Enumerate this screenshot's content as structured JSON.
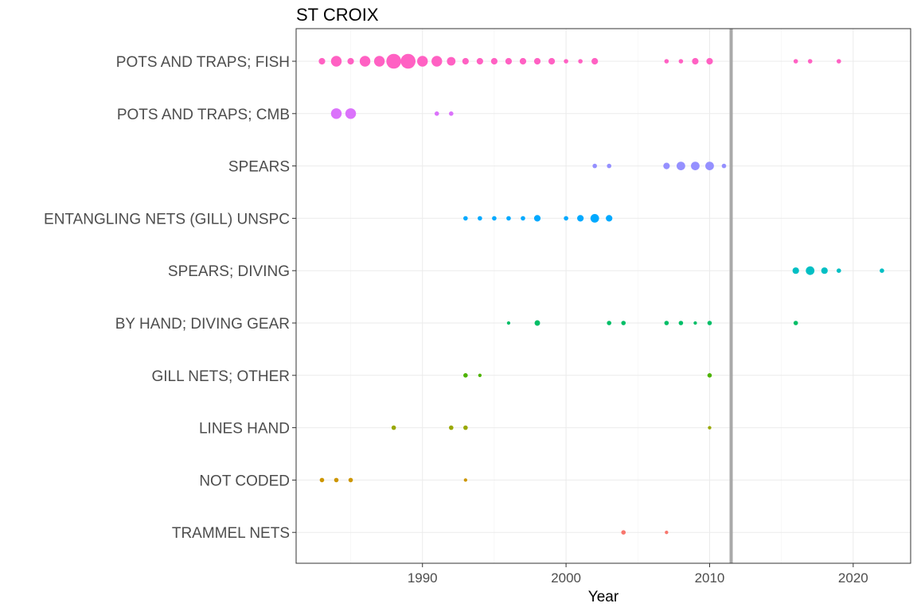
{
  "chart_data": {
    "type": "scatter",
    "title": "ST CROIX",
    "xlabel": "Year",
    "ylabel": "",
    "xlim": [
      1981.2,
      2024.0
    ],
    "xticks": [
      1990,
      2000,
      2010,
      2020
    ],
    "grid": true,
    "reference_line": {
      "x": 2011.5,
      "color": "#A9A9A9"
    },
    "categories": [
      "POTS AND TRAPS; FISH",
      "POTS AND TRAPS; CMB",
      "SPEARS",
      "ENTANGLING NETS (GILL) UNSPC",
      "SPEARS; DIVING",
      "BY HAND; DIVING GEAR",
      "GILL NETS; OTHER",
      "LINES HAND",
      "NOT CODED",
      "TRAMMEL NETS"
    ],
    "series": [
      {
        "category": "POTS AND TRAPS; FISH",
        "color": "#FF61C3",
        "points": [
          {
            "x": 1983,
            "size": 2
          },
          {
            "x": 1984,
            "size": 4
          },
          {
            "x": 1985,
            "size": 2
          },
          {
            "x": 1986,
            "size": 4
          },
          {
            "x": 1987,
            "size": 4
          },
          {
            "x": 1988,
            "size": 6
          },
          {
            "x": 1989,
            "size": 6
          },
          {
            "x": 1990,
            "size": 4
          },
          {
            "x": 1991,
            "size": 4
          },
          {
            "x": 1992,
            "size": 3
          },
          {
            "x": 1993,
            "size": 2
          },
          {
            "x": 1994,
            "size": 2
          },
          {
            "x": 1995,
            "size": 2
          },
          {
            "x": 1996,
            "size": 2
          },
          {
            "x": 1997,
            "size": 2
          },
          {
            "x": 1998,
            "size": 2
          },
          {
            "x": 1999,
            "size": 2
          },
          {
            "x": 2000,
            "size": 1
          },
          {
            "x": 2001,
            "size": 1
          },
          {
            "x": 2002,
            "size": 2
          },
          {
            "x": 2007,
            "size": 1
          },
          {
            "x": 2008,
            "size": 1
          },
          {
            "x": 2009,
            "size": 2
          },
          {
            "x": 2010,
            "size": 2
          },
          {
            "x": 2016,
            "size": 1
          },
          {
            "x": 2017,
            "size": 1
          },
          {
            "x": 2019,
            "size": 1
          }
        ]
      },
      {
        "category": "POTS AND TRAPS; CMB",
        "color": "#DB72FB",
        "points": [
          {
            "x": 1984,
            "size": 4
          },
          {
            "x": 1985,
            "size": 4
          },
          {
            "x": 1991,
            "size": 1
          },
          {
            "x": 1992,
            "size": 1
          }
        ]
      },
      {
        "category": "SPEARS",
        "color": "#9590FF",
        "points": [
          {
            "x": 2002,
            "size": 1
          },
          {
            "x": 2003,
            "size": 1
          },
          {
            "x": 2007,
            "size": 2
          },
          {
            "x": 2008,
            "size": 3
          },
          {
            "x": 2009,
            "size": 3
          },
          {
            "x": 2010,
            "size": 3
          },
          {
            "x": 2011,
            "size": 1
          }
        ]
      },
      {
        "category": "ENTANGLING NETS (GILL) UNSPC",
        "color": "#00A9FF",
        "points": [
          {
            "x": 1993,
            "size": 1
          },
          {
            "x": 1994,
            "size": 1
          },
          {
            "x": 1995,
            "size": 1
          },
          {
            "x": 1996,
            "size": 1
          },
          {
            "x": 1997,
            "size": 1
          },
          {
            "x": 1998,
            "size": 2
          },
          {
            "x": 2000,
            "size": 1
          },
          {
            "x": 2001,
            "size": 2
          },
          {
            "x": 2002,
            "size": 3
          },
          {
            "x": 2003,
            "size": 2
          }
        ]
      },
      {
        "category": "SPEARS; DIVING",
        "color": "#00BFC4",
        "points": [
          {
            "x": 2016,
            "size": 2
          },
          {
            "x": 2017,
            "size": 3
          },
          {
            "x": 2018,
            "size": 2
          },
          {
            "x": 2019,
            "size": 1
          },
          {
            "x": 2022,
            "size": 1
          }
        ]
      },
      {
        "category": "BY HAND; DIVING GEAR",
        "color": "#00BE67",
        "points": [
          {
            "x": 1996,
            "size": 0.5
          },
          {
            "x": 1998,
            "size": 1.5
          },
          {
            "x": 2003,
            "size": 1
          },
          {
            "x": 2004,
            "size": 1
          },
          {
            "x": 2007,
            "size": 1
          },
          {
            "x": 2008,
            "size": 1
          },
          {
            "x": 2009,
            "size": 0.5
          },
          {
            "x": 2010,
            "size": 1
          },
          {
            "x": 2016,
            "size": 1
          }
        ]
      },
      {
        "category": "GILL NETS; OTHER",
        "color": "#4DB300",
        "points": [
          {
            "x": 1993,
            "size": 1
          },
          {
            "x": 1994,
            "size": 0.5
          },
          {
            "x": 2010,
            "size": 1
          }
        ]
      },
      {
        "category": "LINES HAND",
        "color": "#99A800",
        "points": [
          {
            "x": 1988,
            "size": 1
          },
          {
            "x": 1992,
            "size": 1
          },
          {
            "x": 1993,
            "size": 1
          },
          {
            "x": 2010,
            "size": 0.5
          }
        ]
      },
      {
        "category": "NOT CODED",
        "color": "#CD9600",
        "points": [
          {
            "x": 1983,
            "size": 1
          },
          {
            "x": 1984,
            "size": 1
          },
          {
            "x": 1985,
            "size": 1
          },
          {
            "x": 1993,
            "size": 0.5
          }
        ]
      },
      {
        "category": "TRAMMEL NETS",
        "color": "#F8766D",
        "points": [
          {
            "x": 2004,
            "size": 1
          },
          {
            "x": 2007,
            "size": 0.5
          }
        ]
      }
    ]
  }
}
